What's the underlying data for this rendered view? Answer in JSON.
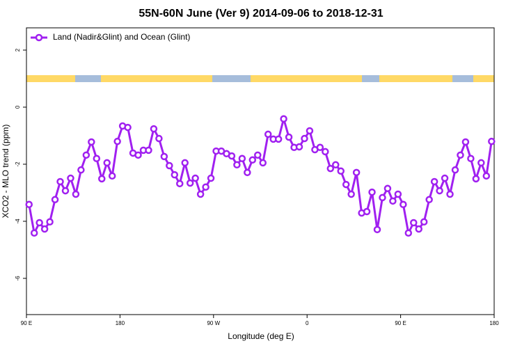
{
  "chart_data": {
    "type": "line",
    "title": "55N-60N June (Ver 9)   2014-09-06 to 2018-12-31",
    "x_label": "Longitude (deg E)",
    "y_label": "XCO2 - MLO trend (ppm)",
    "legend": "topleft",
    "xlim": [
      90,
      540
    ],
    "ylim": [
      -7.27,
      2.78
    ],
    "xticks": [
      {
        "value": 90,
        "label": "90 E"
      },
      180,
      {
        "value": 270,
        "label": "90 W"
      },
      {
        "value": 360,
        "label": "0"
      },
      {
        "value": 450,
        "label": "90 E"
      },
      {
        "value": 540,
        "label": "180"
      }
    ],
    "yticks": [
      2,
      0,
      -2,
      -4,
      -6
    ],
    "x": [
      92.5,
      97.5,
      102.5,
      107.5,
      112.5,
      117.5,
      122.5,
      127.5,
      132.5,
      137.5,
      142.5,
      147.5,
      152.5,
      157.5,
      162.5,
      167.5,
      172.5,
      177.5,
      182.5,
      187.5,
      192.5,
      197.5,
      202.5,
      207.5,
      212.5,
      217.5,
      222.5,
      227.5,
      232.5,
      237.5,
      242.5,
      247.5,
      252.5,
      257.5,
      262.5,
      267.5,
      272.5,
      277.5,
      282.5,
      287.5,
      292.5,
      297.5,
      302.5,
      307.5,
      312.5,
      317.5,
      322.5,
      327.5,
      332.5,
      337.5,
      342.5,
      347.5,
      352.5,
      357.5,
      362.5,
      367.5,
      372.5,
      377.5,
      382.5,
      387.5,
      392.5,
      397.5,
      402.5,
      407.5,
      412.5,
      417.5,
      422.5,
      427.5,
      432.5,
      437.5,
      442.5,
      447.5,
      452.5,
      457.5,
      462.5,
      467.5,
      472.5,
      477.5,
      482.5,
      487.5,
      492.5,
      497.5,
      502.5,
      507.5,
      512.5,
      517.5,
      522.5,
      527.5,
      532.5,
      537.5
    ],
    "series": [
      {
        "name": "Land (Nadir&Glint) and Ocean (Glint)",
        "color": "#a020f0",
        "values": [
          -3.41,
          -4.41,
          -4.05,
          -4.27,
          -4.02,
          -3.24,
          -2.61,
          -2.93,
          -2.49,
          -3.05,
          -2.2,
          -1.68,
          -1.22,
          -1.8,
          -2.51,
          -1.95,
          -2.41,
          -1.2,
          -0.66,
          -0.71,
          -1.61,
          -1.68,
          -1.51,
          -1.51,
          -0.76,
          -1.1,
          -1.73,
          -2.05,
          -2.37,
          -2.68,
          -1.95,
          -2.66,
          -2.49,
          -3.05,
          -2.8,
          -2.49,
          -1.54,
          -1.54,
          -1.63,
          -1.71,
          -2.02,
          -1.8,
          -2.29,
          -1.85,
          -1.68,
          -1.95,
          -0.95,
          -1.12,
          -1.12,
          -0.41,
          -1.05,
          -1.41,
          -1.39,
          -1.1,
          -0.83,
          -1.49,
          -1.41,
          -1.56,
          -2.15,
          -2.02,
          -2.24,
          -2.71,
          -3.05,
          -2.29,
          -3.71,
          -3.66,
          -2.98,
          -4.29,
          -3.17,
          -2.85,
          -3.29,
          -3.05,
          -3.41,
          -4.41,
          -4.05,
          -4.27,
          -4.02,
          -3.24,
          -2.61,
          -2.93,
          -2.49,
          -3.05,
          -2.2,
          -1.68,
          -1.22,
          -1.8,
          -2.51,
          -1.95,
          -2.41,
          -1.2
        ]
      }
    ]
  }
}
